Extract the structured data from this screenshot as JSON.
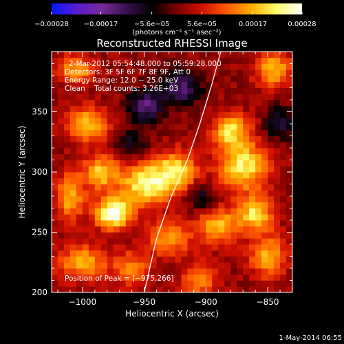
{
  "chart_data": {
    "type": "heatmap",
    "title": "Reconstructed RHESSI Image",
    "xlabel": "Heliocentric X (arcsec)",
    "ylabel": "Heliocentric Y (arcsec)",
    "xlim": [
      -1025,
      -830
    ],
    "ylim": [
      200,
      400
    ],
    "x_ticks": [
      -1000,
      -950,
      -900,
      -850
    ],
    "x_tick_labels": [
      "−1000",
      "−950",
      "−900",
      "−850"
    ],
    "y_ticks": [
      200,
      250,
      300,
      350
    ],
    "y_tick_labels": [
      "200",
      "250",
      "300",
      "350"
    ],
    "colorbar": {
      "range": [
        -0.00028,
        0.00028
      ],
      "ticks": [
        -0.00028,
        -0.00017,
        -5.6e-05,
        5.6e-05,
        0.00017,
        0.00028
      ],
      "tick_labels": [
        "−0.00028",
        "−0.00017",
        "−5.6e−05",
        "5.6e−05",
        "0.00017",
        "0.00028"
      ],
      "unit_label": "(photons cm⁻² s⁻¹ asec⁻²)",
      "colors": [
        "#0018ff",
        "#5a1cd0",
        "#7a2a9a",
        "#3a1050",
        "#000000",
        "#7a0000",
        "#d01000",
        "#ff5a00",
        "#ffb000",
        "#ffff70",
        "#ffffff"
      ]
    },
    "annotations": {
      "time_range": "2-Mar-2012 05:54:48.000 to 05:59:28.000",
      "detectors": "Detectors: 3F 5F 6F 7F 8F 9F, Att 0",
      "energy_range": "Energy Range: 12.0 − 25.0 keV",
      "clean_line": "Clean    Total counts: 3.26E+03",
      "peak": "Position of Peak = [−975,266]"
    },
    "limb_line": [
      [
        -950,
        200
      ],
      [
        -940,
        245
      ],
      [
        -928,
        280
      ],
      [
        -915,
        310
      ],
      [
        -905,
        340
      ],
      [
        -896,
        370
      ],
      [
        -888,
        400
      ]
    ],
    "blobs": [
      {
        "x": -975,
        "y": 266,
        "sx": 10,
        "sy": 9,
        "a": 1.0
      },
      {
        "x": -950,
        "y": 290,
        "sx": 14,
        "sy": 12,
        "a": 0.75
      },
      {
        "x": -925,
        "y": 300,
        "sx": 12,
        "sy": 12,
        "a": 0.7
      },
      {
        "x": -985,
        "y": 300,
        "sx": 10,
        "sy": 10,
        "a": 0.6
      },
      {
        "x": -1010,
        "y": 280,
        "sx": 8,
        "sy": 14,
        "a": 0.55
      },
      {
        "x": -870,
        "y": 305,
        "sx": 14,
        "sy": 14,
        "a": 0.75
      },
      {
        "x": -880,
        "y": 335,
        "sx": 10,
        "sy": 10,
        "a": 0.65
      },
      {
        "x": -860,
        "y": 265,
        "sx": 10,
        "sy": 10,
        "a": 0.7
      },
      {
        "x": -890,
        "y": 255,
        "sx": 12,
        "sy": 10,
        "a": 0.6
      },
      {
        "x": -850,
        "y": 230,
        "sx": 10,
        "sy": 12,
        "a": 0.55
      },
      {
        "x": -995,
        "y": 340,
        "sx": 12,
        "sy": 10,
        "a": 0.6
      },
      {
        "x": -1000,
        "y": 225,
        "sx": 14,
        "sy": 10,
        "a": 0.55
      },
      {
        "x": -960,
        "y": 220,
        "sx": 10,
        "sy": 10,
        "a": 0.45
      },
      {
        "x": -930,
        "y": 245,
        "sx": 12,
        "sy": 10,
        "a": 0.5
      },
      {
        "x": -845,
        "y": 385,
        "sx": 10,
        "sy": 10,
        "a": 0.6
      },
      {
        "x": -1005,
        "y": 385,
        "sx": 10,
        "sy": 8,
        "a": 0.55
      },
      {
        "x": -905,
        "y": 210,
        "sx": 10,
        "sy": 10,
        "a": 0.45
      },
      {
        "x": -950,
        "y": 355,
        "sx": 10,
        "sy": 10,
        "a": -0.55
      },
      {
        "x": -920,
        "y": 370,
        "sx": 12,
        "sy": 10,
        "a": -0.5
      },
      {
        "x": -905,
        "y": 280,
        "sx": 8,
        "sy": 8,
        "a": -0.35
      },
      {
        "x": -840,
        "y": 340,
        "sx": 8,
        "sy": 10,
        "a": -0.4
      },
      {
        "x": -960,
        "y": 325,
        "sx": 10,
        "sy": 8,
        "a": -0.3
      }
    ]
  },
  "footer": {
    "date": "1-May-2014 06:55"
  }
}
